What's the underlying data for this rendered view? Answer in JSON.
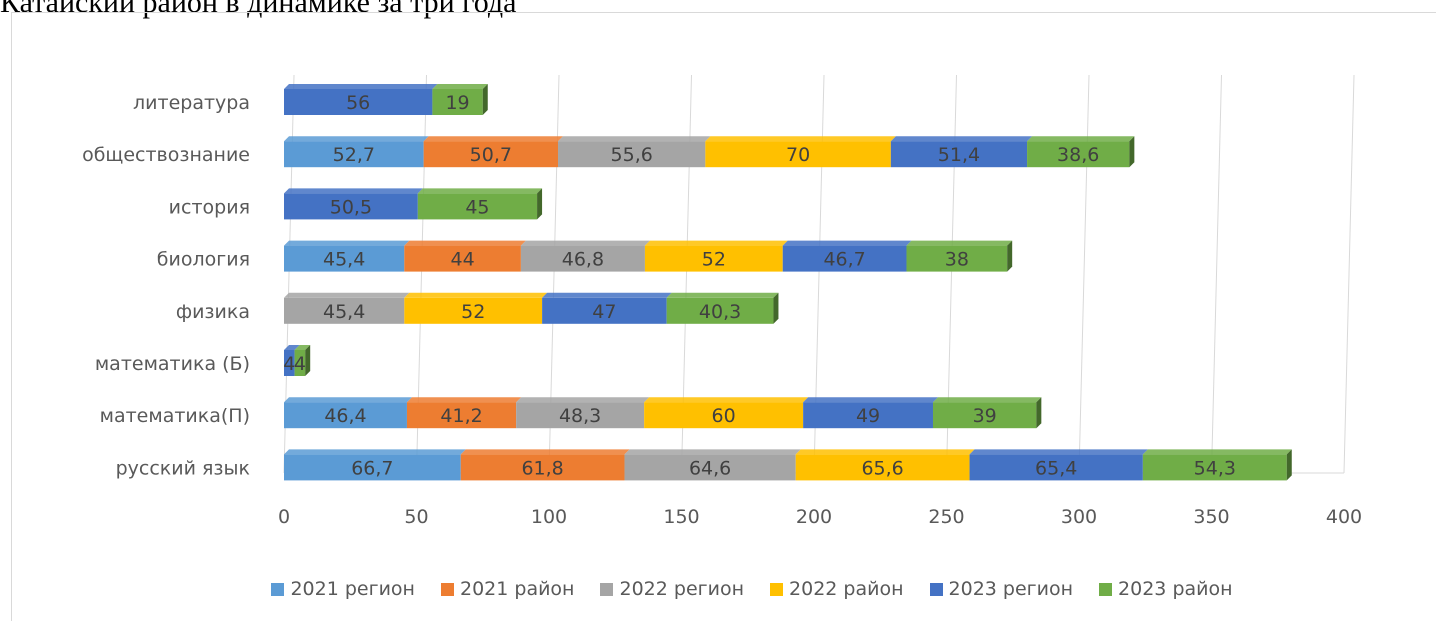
{
  "title": "Катайский район в динамике за три года",
  "colors": {
    "2021 регион": "#5b9bd5",
    "2021 район": "#ed7d31",
    "2022 регион": "#a5a5a5",
    "2022 район": "#ffc000",
    "2023 регион": "#4472c4",
    "2023 район": "#70ad47"
  },
  "chart_data": {
    "type": "bar",
    "orientation": "horizontal",
    "stacked": true,
    "categories": [
      "литература",
      "обществознание",
      "история",
      "биология",
      "физика",
      "математика (Б)",
      "математика(П)",
      "русский язык"
    ],
    "series": [
      {
        "name": "2021 регион",
        "values": [
          null,
          52.7,
          null,
          45.4,
          null,
          null,
          46.4,
          66.7
        ],
        "labels": [
          null,
          "52,7",
          null,
          "45,4",
          null,
          null,
          "46,4",
          "66,7"
        ]
      },
      {
        "name": "2021 район",
        "values": [
          null,
          50.7,
          null,
          44,
          null,
          null,
          41.2,
          61.8
        ],
        "labels": [
          null,
          "50,7",
          null,
          "44",
          null,
          null,
          "41,2",
          "61,8"
        ]
      },
      {
        "name": "2022 регион",
        "values": [
          null,
          55.6,
          null,
          46.8,
          45.4,
          null,
          48.3,
          64.6
        ],
        "labels": [
          null,
          "55,6",
          null,
          "46,8",
          "45,4",
          null,
          "48,3",
          "64,6"
        ]
      },
      {
        "name": "2022 район",
        "values": [
          null,
          70,
          null,
          52,
          52,
          null,
          60,
          65.6
        ],
        "labels": [
          null,
          "70",
          null,
          "52",
          "52",
          null,
          "60",
          "65,6"
        ]
      },
      {
        "name": "2023 регион",
        "values": [
          56,
          51.4,
          50.5,
          46.7,
          47,
          4,
          49,
          65.4
        ],
        "labels": [
          "56",
          "51,4",
          "50,5",
          "46,7",
          "47",
          "4",
          "49",
          "65,4"
        ]
      },
      {
        "name": "2023 район",
        "values": [
          19,
          38.6,
          45,
          38,
          40.3,
          4,
          39,
          54.3
        ],
        "labels": [
          "19",
          "38,6",
          "45",
          "38",
          "40,3",
          "4",
          "39",
          "54,3"
        ]
      }
    ],
    "xlim": [
      0,
      400
    ],
    "x_ticks": [
      0,
      50,
      100,
      150,
      200,
      250,
      300,
      350,
      400
    ],
    "grid": true,
    "legend_position": "bottom"
  }
}
